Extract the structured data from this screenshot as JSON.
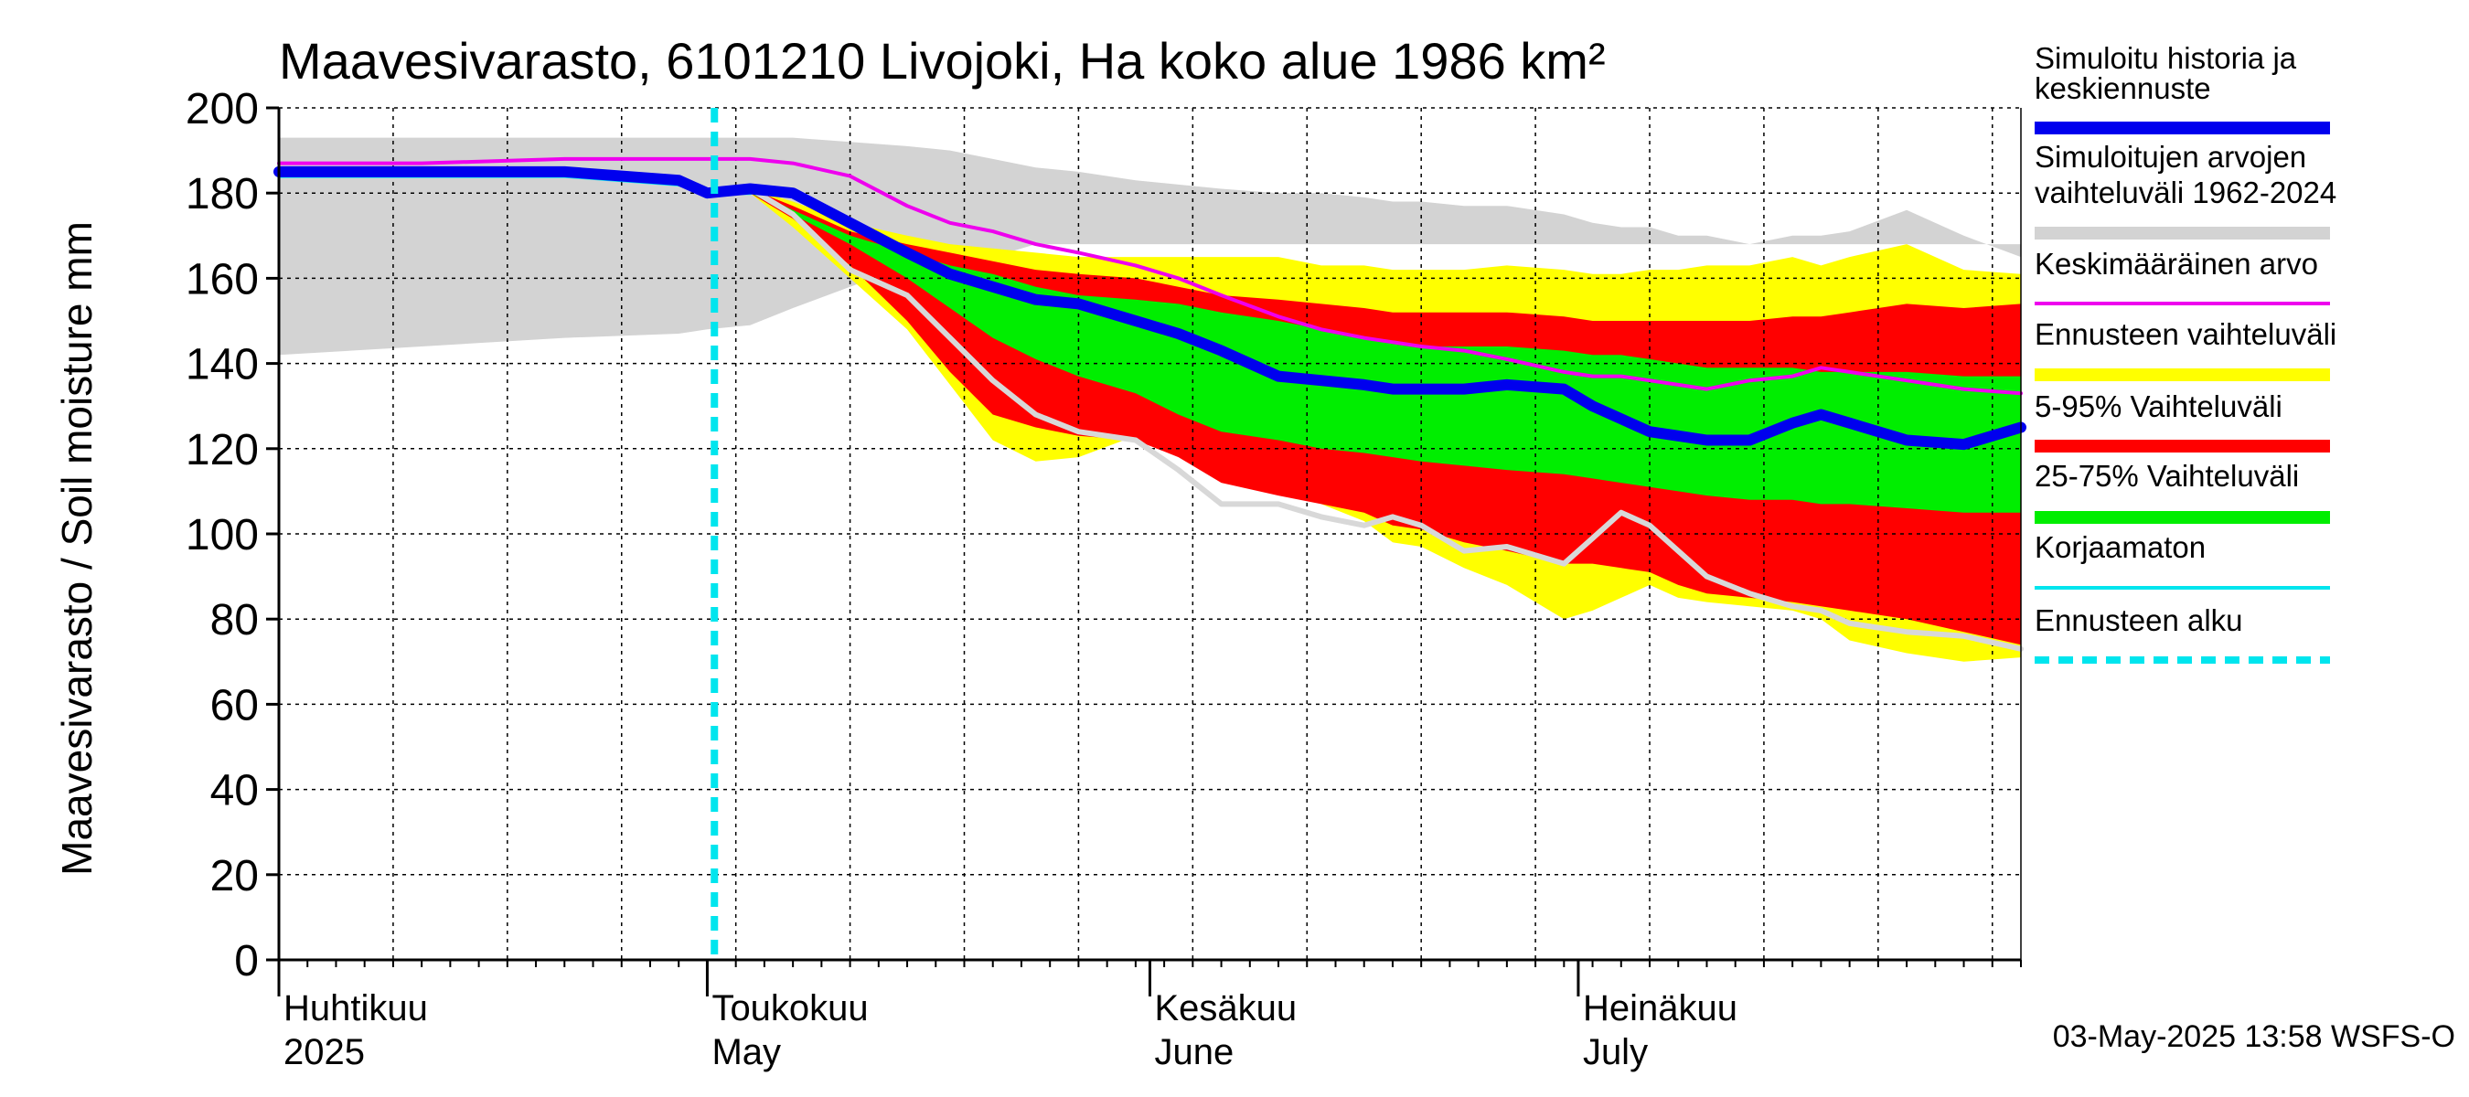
{
  "chart_data": {
    "type": "area",
    "title": "Maavesivarasto, 6101210 Livojoki, Ha koko alue 1986 km²",
    "ylabel": "Maavesivarasto / Soil moisture   mm",
    "xlabel": "",
    "ylim": [
      0,
      200
    ],
    "xlim_days": [
      0,
      122
    ],
    "grid": true,
    "y_ticks": [
      0,
      20,
      40,
      60,
      80,
      100,
      120,
      140,
      160,
      180,
      200
    ],
    "month_labels": [
      {
        "fi": "Huhtikuu",
        "en": "2025",
        "day": 0
      },
      {
        "fi": "Toukokuu",
        "en": "May",
        "day": 30
      },
      {
        "fi": "Kesäkuu",
        "en": "June",
        "day": 61
      },
      {
        "fi": "Heinäkuu",
        "en": "July",
        "day": 91
      }
    ],
    "forecast_start_day": 30.5,
    "x_days": [
      0,
      10,
      20,
      28,
      30,
      33,
      36,
      40,
      44,
      47,
      50,
      53,
      56,
      60,
      63,
      66,
      70,
      73,
      76,
      78,
      80,
      83,
      86,
      90,
      92,
      94,
      96,
      98,
      100,
      103,
      106,
      108,
      110,
      114,
      118,
      122
    ],
    "series": [
      {
        "name": "Simuloitujen arvojen vaihteluväli 1962-2024 (max)",
        "color": "#d3d3d3",
        "values": [
          193,
          193,
          193,
          193,
          193,
          193,
          193,
          192,
          191,
          190,
          188,
          186,
          185,
          183,
          182,
          181,
          180,
          180,
          179,
          178,
          178,
          177,
          177,
          175,
          173,
          172,
          172,
          170,
          170,
          168,
          170,
          170,
          171,
          176,
          170,
          165
        ]
      },
      {
        "name": "Simuloitujen arvojen vaihteluväli 1962-2024 (min)",
        "color": "#d3d3d3",
        "values": [
          142,
          144,
          146,
          147,
          148,
          149,
          153,
          158,
          163,
          160,
          165,
          168,
          168,
          168,
          168,
          168,
          168,
          168,
          168,
          168,
          168,
          168,
          168,
          168,
          168,
          168,
          168,
          168,
          168,
          168,
          168,
          168,
          168,
          168,
          168,
          168
        ]
      },
      {
        "name": "Ennusteen vaihteluväli (max)",
        "color": "#ffff00",
        "values": [
          null,
          null,
          null,
          null,
          181,
          181,
          178,
          173,
          170,
          168,
          167,
          166,
          165,
          165,
          165,
          165,
          165,
          163,
          163,
          162,
          162,
          162,
          163,
          162,
          161,
          161,
          162,
          162,
          163,
          163,
          165,
          163,
          165,
          168,
          162,
          161
        ]
      },
      {
        "name": "Ennusteen vaihteluväli (min)",
        "color": "#ffff00",
        "values": [
          null,
          null,
          null,
          null,
          181,
          180,
          172,
          160,
          148,
          135,
          122,
          117,
          118,
          123,
          120,
          116,
          112,
          107,
          103,
          98,
          97,
          92,
          88,
          80,
          82,
          85,
          88,
          85,
          84,
          83,
          82,
          80,
          75,
          72,
          70,
          71
        ]
      },
      {
        "name": "5-95% Vaihteluväli (max)",
        "color": "#ff0000",
        "values": [
          null,
          null,
          null,
          null,
          181,
          181,
          177,
          171,
          168,
          166,
          164,
          162,
          161,
          160,
          158,
          156,
          155,
          154,
          153,
          152,
          152,
          152,
          152,
          151,
          150,
          150,
          150,
          150,
          150,
          150,
          151,
          151,
          152,
          154,
          153,
          154
        ]
      },
      {
        "name": "5-95% Vaihteluväli (min)",
        "color": "#ff0000",
        "values": [
          null,
          null,
          null,
          null,
          181,
          180,
          174,
          163,
          150,
          138,
          128,
          125,
          123,
          122,
          118,
          112,
          109,
          107,
          105,
          102,
          101,
          98,
          96,
          93,
          93,
          92,
          91,
          88,
          86,
          85,
          84,
          83,
          82,
          80,
          77,
          74
        ]
      },
      {
        "name": "25-75% Vaihteluväli (max)",
        "color": "#00ee00",
        "values": [
          null,
          null,
          null,
          null,
          181,
          181,
          176,
          170,
          166,
          163,
          161,
          158,
          156,
          155,
          154,
          152,
          150,
          148,
          146,
          145,
          144,
          144,
          144,
          143,
          142,
          142,
          141,
          140,
          139,
          139,
          139,
          138,
          138,
          138,
          137,
          137
        ]
      },
      {
        "name": "25-75% Vaihteluväli (min)",
        "color": "#00ee00",
        "values": [
          null,
          null,
          null,
          null,
          181,
          180,
          175,
          168,
          160,
          153,
          146,
          141,
          137,
          133,
          128,
          124,
          122,
          120,
          119,
          118,
          117,
          116,
          115,
          114,
          113,
          112,
          111,
          110,
          109,
          108,
          108,
          107,
          107,
          106,
          105,
          105
        ]
      },
      {
        "name": "Simuloitu historia ja keskiennuste",
        "color": "#0000ee",
        "values": [
          185,
          185,
          185,
          183,
          180,
          181,
          180,
          173,
          166,
          161,
          158,
          155,
          154,
          150,
          147,
          143,
          137,
          136,
          135,
          134,
          134,
          134,
          135,
          134,
          130,
          127,
          124,
          123,
          122,
          122,
          126,
          128,
          126,
          122,
          121,
          125
        ]
      },
      {
        "name": "Keskimääräinen arvo",
        "color": "#ee00ee",
        "values": [
          187,
          187,
          188,
          188,
          188,
          188,
          187,
          184,
          177,
          173,
          171,
          168,
          166,
          163,
          160,
          156,
          151,
          148,
          146,
          145,
          144,
          143,
          141,
          138,
          137,
          137,
          136,
          135,
          134,
          136,
          137,
          139,
          138,
          136,
          134,
          133
        ]
      },
      {
        "name": "Korjaamaton",
        "color": "#00e5ee",
        "values": [
          184,
          184,
          184,
          182,
          180,
          180,
          null,
          null,
          null,
          null,
          null,
          null,
          null,
          null,
          null,
          null,
          null,
          null,
          null,
          null,
          null,
          null,
          null,
          null,
          null,
          null,
          null,
          null,
          null,
          null,
          null,
          null,
          null,
          null,
          null,
          null
        ]
      },
      {
        "name": "Simulated trace",
        "color": "#d8d8d8",
        "values": [
          null,
          null,
          null,
          null,
          181,
          181,
          175,
          162,
          156,
          146,
          136,
          128,
          124,
          122,
          115,
          107,
          107,
          104,
          102,
          104,
          102,
          96,
          97,
          93,
          99,
          105,
          102,
          96,
          90,
          86,
          83,
          82,
          79,
          77,
          76,
          73
        ]
      }
    ],
    "legend": [
      {
        "label": "Simuloitu historia ja keskiennuste",
        "color": "#0000ee",
        "style": "thick"
      },
      {
        "label": "Simuloitujen arvojen vaihteluväli 1962-2024",
        "color": "#d3d3d3",
        "style": "thick"
      },
      {
        "label": "Keskimääräinen arvo",
        "color": "#ee00ee",
        "style": "line"
      },
      {
        "label": "Ennusteen vaihteluväli",
        "color": "#ffff00",
        "style": "thick"
      },
      {
        "label": "5-95% Vaihteluväli",
        "color": "#ff0000",
        "style": "thick"
      },
      {
        "label": "25-75% Vaihteluväli",
        "color": "#00ee00",
        "style": "thick"
      },
      {
        "label": "Korjaamaton",
        "color": "#00e5ee",
        "style": "line"
      },
      {
        "label": "Ennusteen alku",
        "color": "#00e5ee",
        "style": "dashed"
      }
    ],
    "footer": "03-May-2025 13:58 WSFS-O"
  }
}
